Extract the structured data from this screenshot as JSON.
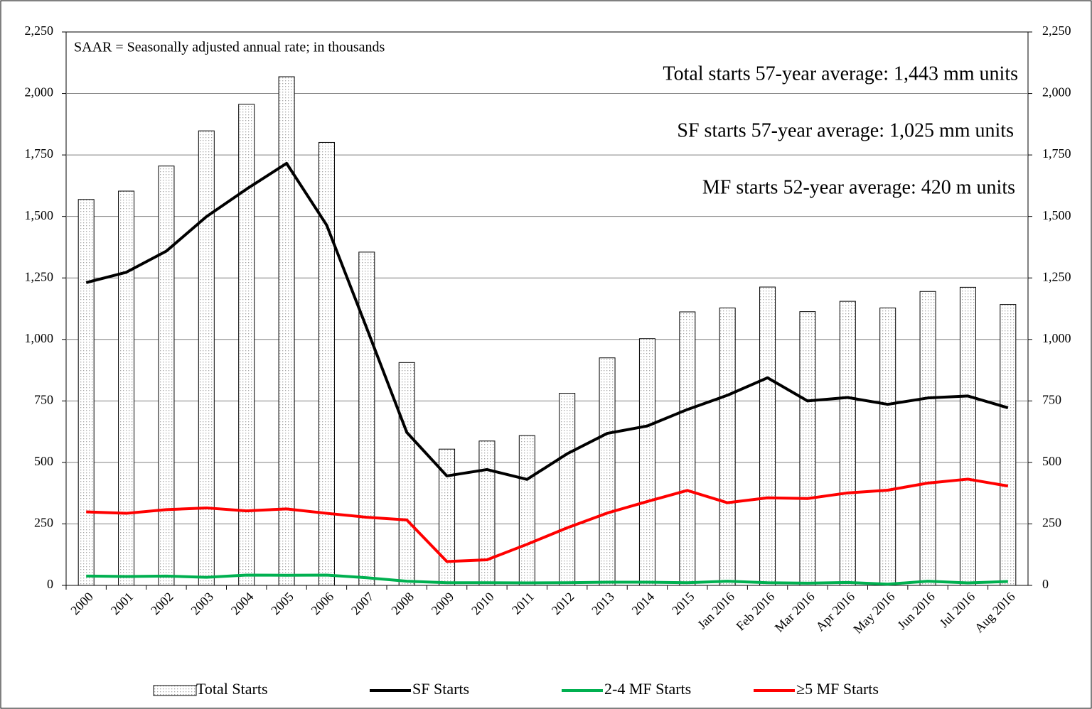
{
  "chart_data": {
    "type": "combo",
    "annotations": [
      "SAAR = Seasonally adjusted annual rate; in thousands",
      "Total starts 57-year average: 1,443 mm units",
      "SF starts 57-year average: 1,025 mm units",
      "MF starts 52-year average: 420 m units"
    ],
    "categories": [
      "2000",
      "2001",
      "2002",
      "2003",
      "2004",
      "2005",
      "2006",
      "2007",
      "2008",
      "2009",
      "2010",
      "2011",
      "2012",
      "2013",
      "2014",
      "2015",
      "Jan 2016",
      "Feb 2016",
      "Mar 2016",
      "Apr 2016",
      "May 2016",
      "Jun 2016",
      "Jul 2016",
      "Aug 2016"
    ],
    "series": [
      {
        "name": "Total Starts",
        "type": "bar",
        "color": "#a6a6a6",
        "values": [
          1569,
          1603,
          1705,
          1848,
          1956,
          2068,
          1801,
          1355,
          906,
          554,
          587,
          609,
          781,
          925,
          1003,
          1112,
          1128,
          1213,
          1113,
          1155,
          1128,
          1195,
          1212,
          1142
        ]
      },
      {
        "name": "SF Starts",
        "type": "line",
        "color": "#000000",
        "values": [
          1231,
          1273,
          1359,
          1499,
          1611,
          1716,
          1465,
          1046,
          622,
          445,
          471,
          431,
          535,
          618,
          648,
          715,
          773,
          844,
          750,
          764,
          736,
          762,
          770,
          722
        ]
      },
      {
        "name": "2-4 MF Starts",
        "type": "line",
        "color": "#00b050",
        "values": [
          38,
          36,
          38,
          33,
          42,
          41,
          42,
          31,
          17,
          11,
          11,
          10,
          11,
          13,
          13,
          11,
          17,
          11,
          9,
          12,
          5,
          17,
          10,
          16
        ]
      },
      {
        "name": "≥5 MF Starts",
        "type": "line",
        "color": "#ff0000",
        "values": [
          299,
          293,
          308,
          315,
          303,
          311,
          293,
          277,
          266,
          97,
          104,
          167,
          234,
          294,
          341,
          386,
          336,
          356,
          353,
          376,
          387,
          416,
          432,
          404
        ]
      }
    ],
    "ylim": [
      0,
      2250
    ],
    "yticks": [
      0,
      250,
      500,
      750,
      {
        "value": 1000,
        "label": "1,000"
      },
      {
        "value": 1250,
        "label": "1,250"
      },
      {
        "value": 1500,
        "label": "1,500"
      },
      {
        "value": 1750,
        "label": "1,750"
      },
      {
        "value": 2000,
        "label": "2,000"
      },
      {
        "value": 2250,
        "label": "2,250"
      }
    ],
    "y2lim": [
      0,
      2250
    ],
    "y2ticks": [
      0,
      250,
      500,
      750,
      {
        "value": 1000,
        "label": "1,000"
      },
      {
        "value": 1250,
        "label": "1,250"
      },
      {
        "value": 1500,
        "label": "1,500"
      },
      {
        "value": 1750,
        "label": "1,750"
      },
      {
        "value": 2000,
        "label": "2,000"
      },
      {
        "value": 2250,
        "label": "2,250"
      }
    ],
    "grid": true,
    "legend": "bottom"
  }
}
